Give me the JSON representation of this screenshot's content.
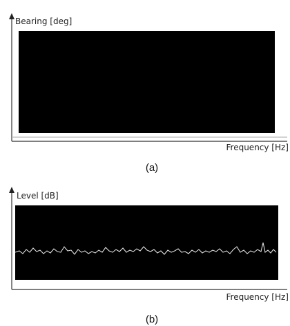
{
  "panels": [
    {
      "y_label": "Bearing [deg]",
      "x_label": "Frequency [Hz]",
      "caption": "(a)"
    },
    {
      "y_label": "Level [dB]",
      "x_label": "Frequency [Hz]",
      "caption": "(b)"
    }
  ]
}
